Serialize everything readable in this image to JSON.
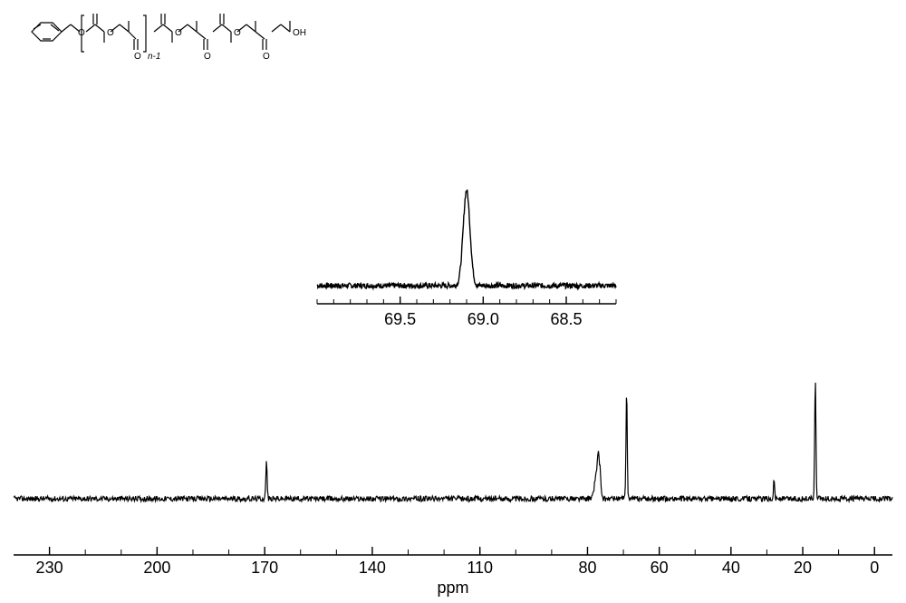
{
  "structure_label": "n-1",
  "structure_oh": "OH",
  "structure_o": "O",
  "main_spectrum": {
    "type": "nmr_spectrum",
    "xlim": [
      240,
      -5
    ],
    "xtick_values": [
      230,
      200,
      170,
      140,
      110,
      80,
      60,
      40,
      20,
      0
    ],
    "xlabel": "ppm",
    "baseline_y": 0.5,
    "noise_amplitude": 0.015,
    "peaks": [
      {
        "x": 169.5,
        "height": 0.2,
        "width": 0.5
      },
      {
        "x": 77.5,
        "height": 0.14,
        "width": 1.5
      },
      {
        "x": 77.0,
        "height": 0.17,
        "width": 0.6
      },
      {
        "x": 76.5,
        "height": 0.14,
        "width": 0.6
      },
      {
        "x": 69.1,
        "height": 0.58,
        "width": 0.5
      },
      {
        "x": 28.0,
        "height": 0.1,
        "width": 0.5
      },
      {
        "x": 16.5,
        "height": 0.65,
        "width": 0.5
      }
    ],
    "line_color": "#000000",
    "line_width": 1.2,
    "background_color": "#ffffff"
  },
  "inset_spectrum": {
    "type": "nmr_spectrum_zoom",
    "xlim": [
      70.0,
      68.2
    ],
    "xtick_values": [
      69.5,
      69.0,
      68.5
    ],
    "baseline_y": 0.28,
    "noise_amplitude": 0.02,
    "peaks": [
      {
        "x": 69.1,
        "height": 0.7,
        "width": 0.05
      }
    ],
    "line_color": "#000000",
    "line_width": 1.4,
    "background_color": "#ffffff"
  },
  "axis_tick_color": "#000000",
  "axis_line_color": "#000000"
}
